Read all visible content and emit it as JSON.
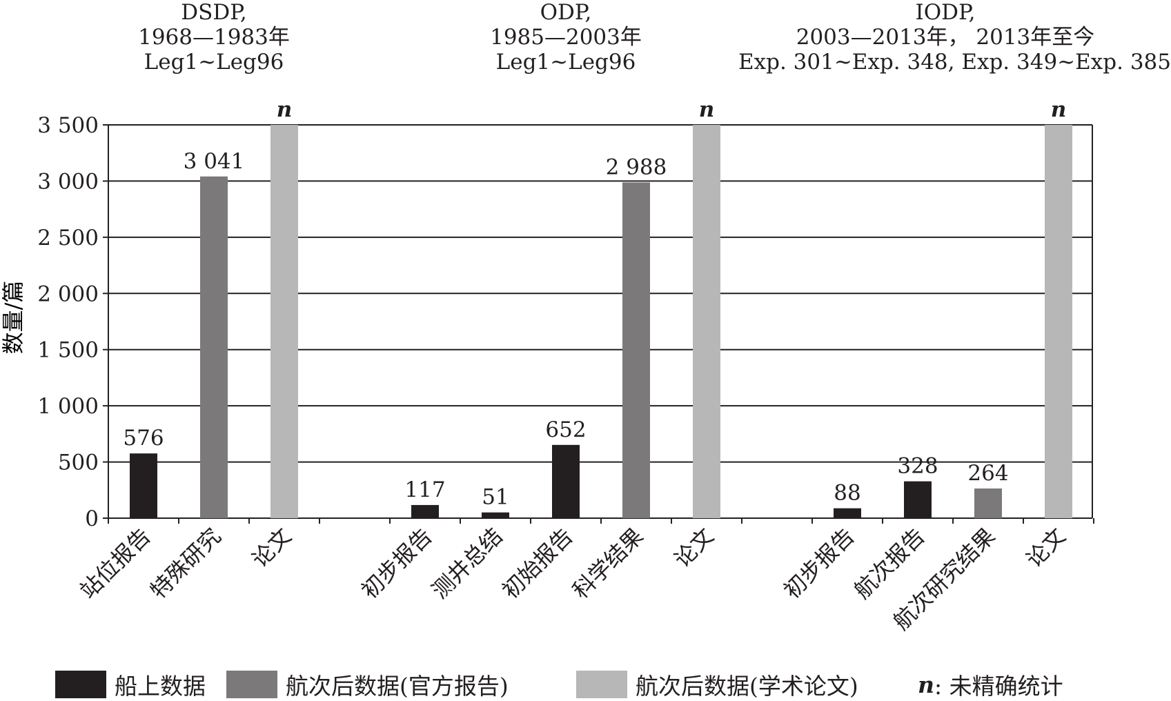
{
  "chart_data": {
    "type": "bar",
    "ylabel": "数量/篇",
    "ylim": [
      0,
      3500
    ],
    "yticks": [
      "0",
      "500",
      "1 000",
      "1 500",
      "2 000",
      "2 500",
      "3 000",
      "3 500"
    ],
    "grid": true,
    "groups": [
      {
        "title": [
          "DSDP,",
          "1968—1983年",
          "Leg1~Leg96"
        ]
      },
      {
        "title": [
          "ODP,",
          "1985—2003年",
          "Leg1~Leg96"
        ]
      },
      {
        "title": [
          "IODP,",
          "2003—2013年， 2013年至今",
          "Exp. 301~Exp. 348, Exp. 349~Exp. 385"
        ]
      }
    ],
    "bars": [
      {
        "label": "站位报告",
        "value": 576,
        "display": "576",
        "series": "shipboard"
      },
      {
        "label": "特殊研究",
        "value": 3041,
        "display": "3 041",
        "series": "official"
      },
      {
        "label": "论文",
        "value": 3500,
        "display": "n",
        "series": "academic"
      },
      {
        "label": "初步报告",
        "value": 117,
        "display": "117",
        "series": "shipboard"
      },
      {
        "label": "测井总结",
        "value": 51,
        "display": "51",
        "series": "shipboard"
      },
      {
        "label": "初始报告",
        "value": 652,
        "display": "652",
        "series": "shipboard"
      },
      {
        "label": "科学结果",
        "value": 2988,
        "display": "2 988",
        "series": "official"
      },
      {
        "label": "论文",
        "value": 3500,
        "display": "n",
        "series": "academic"
      },
      {
        "label": "初步报告",
        "value": 88,
        "display": "88",
        "series": "shipboard"
      },
      {
        "label": "航次报告",
        "value": 328,
        "display": "328",
        "series": "shipboard"
      },
      {
        "label": "航次研究结果",
        "value": 264,
        "display": "264",
        "series": "official"
      },
      {
        "label": "论文",
        "value": 3500,
        "display": "n",
        "series": "academic"
      }
    ],
    "series": [
      {
        "key": "shipboard",
        "name": "船上数据",
        "color": "#231f20"
      },
      {
        "key": "official",
        "name": "航次后数据(官方报告)",
        "color": "#7b797a"
      },
      {
        "key": "academic",
        "name": "航次后数据(学术论文)",
        "color": "#b8b7b7"
      }
    ],
    "legend_position": "bottom",
    "note": {
      "symbol": "n",
      "text": ": 未精确统计"
    }
  }
}
